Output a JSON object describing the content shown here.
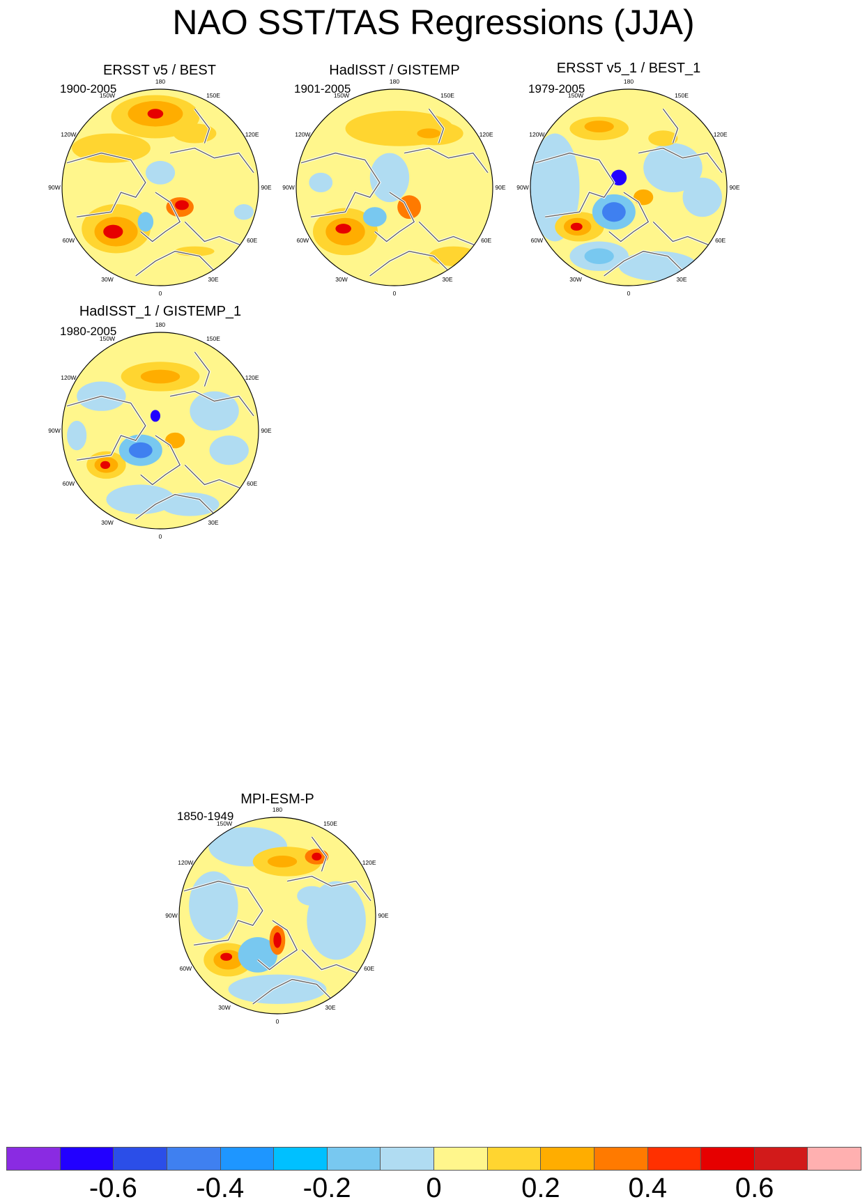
{
  "title": "NAO SST/TAS Regressions (JJA)",
  "lon_labels": [
    "180",
    "150E",
    "120E",
    "90E",
    "60E",
    "30E",
    "0",
    "30W",
    "60W",
    "90W",
    "120W",
    "150W"
  ],
  "panels": [
    {
      "id": "ersst-best",
      "title": "ERSST v5 / BEST",
      "years": "1900-2005"
    },
    {
      "id": "hadisst-gistemp",
      "title": "HadISST / GISTEMP",
      "years": "1901-2005"
    },
    {
      "id": "ersst1-best1",
      "title": "ERSST v5_1 / BEST_1",
      "years": "1979-2005"
    },
    {
      "id": "hadisst1-gistemp1",
      "title": "HadISST_1 / GISTEMP_1",
      "years": "1980-2005"
    },
    {
      "id": "mpi-esm-p",
      "title": "MPI-ESM-P",
      "years": "1850-1949"
    }
  ],
  "colorbar": {
    "colors": [
      "#8a2be2",
      "#2200ff",
      "#2b4ee8",
      "#3f80f0",
      "#1e96ff",
      "#00c0ff",
      "#78c8f0",
      "#b0dcf2",
      "#fff68c",
      "#ffd530",
      "#ffad00",
      "#ff7a00",
      "#ff3000",
      "#e60000",
      "#d21a1a",
      "#ffb0b0"
    ],
    "labels": [
      "-0.6",
      "-0.4",
      "-0.2",
      "0",
      "0.2",
      "0.4",
      "0.6"
    ]
  },
  "palette": {
    "neutral": "#fff68c",
    "weak_pos": "#ffd530",
    "pos": "#ffad00",
    "strong_pos": "#ff7a00",
    "very_strong": "#e60000",
    "weak_neg": "#b0dcf2",
    "neg": "#78c8f0",
    "strong_neg": "#3f80f0",
    "very_neg": "#2200ff",
    "land_outline": "#666666"
  }
}
